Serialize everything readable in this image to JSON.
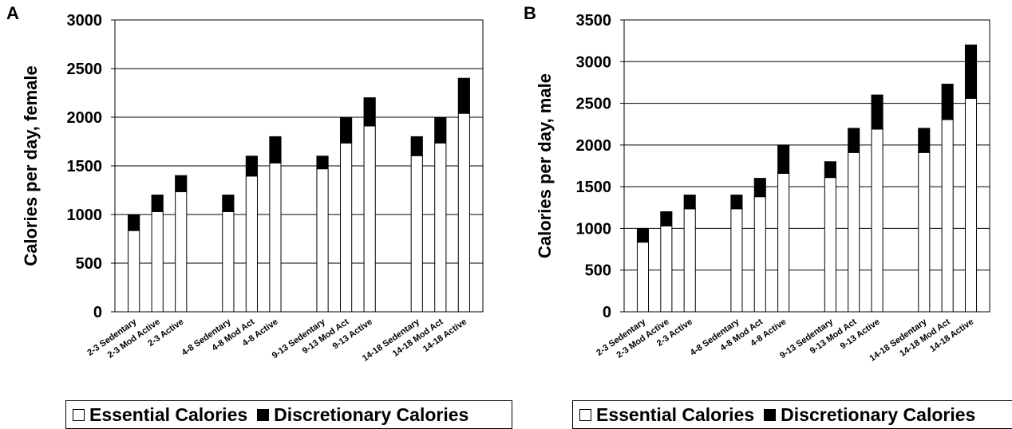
{
  "chart_data": [
    {
      "type": "bar",
      "stacked": true,
      "panel_label": "A",
      "ylabel": "Calories per day, female",
      "ylim": [
        0,
        3000
      ],
      "yticks": [
        0,
        500,
        1000,
        1500,
        2000,
        2500,
        3000
      ],
      "grid": true,
      "categories": [
        "2-3 Sedentary",
        "2-3 Mod Active",
        "2-3 Active",
        "4-8 Sedentary",
        "4-8 Mod Act",
        "4-8 Active",
        "9-13 Sedentary",
        "9-13 Mod Act",
        "9-13 Active",
        "14-18 Sedentary",
        "14-18 Mod Act",
        "14-18 Active"
      ],
      "groups": [
        [
          "2-3 Sedentary",
          "2-3 Mod Active",
          "2-3 Active"
        ],
        [
          "4-8 Sedentary",
          "4-8 Mod Act",
          "4-8 Active"
        ],
        [
          "9-13 Sedentary",
          "9-13 Mod Act",
          "9-13 Active"
        ],
        [
          "14-18 Sedentary",
          "14-18 Mod Act",
          "14-18 Active"
        ]
      ],
      "series": [
        {
          "name": "Essential Calories",
          "color": "#ffffff",
          "values": [
            835,
            1030,
            1235,
            1030,
            1395,
            1530,
            1470,
            1735,
            1910,
            1605,
            1735,
            2040
          ]
        },
        {
          "name": "Discretionary Calories",
          "color": "#000000",
          "values": [
            165,
            170,
            165,
            170,
            205,
            270,
            130,
            265,
            290,
            195,
            265,
            360
          ]
        }
      ],
      "legend": "bottom"
    },
    {
      "type": "bar",
      "stacked": true,
      "panel_label": "B",
      "ylabel": "Calories per day, male",
      "ylim": [
        0,
        3500
      ],
      "yticks": [
        0,
        500,
        1000,
        1500,
        2000,
        2500,
        3000,
        3500
      ],
      "grid": true,
      "categories": [
        "2-3 Sedentary",
        "2-3 Mod Active",
        "2-3 Active",
        "4-8 Sedentary",
        "4-8 Mod Act",
        "4-8 Active",
        "9-13 Sedentary",
        "9-13 Mod Act",
        "9-13 Active",
        "14-18 Sedentary",
        "14-18 Mod Act",
        "14-18 Active"
      ],
      "groups": [
        [
          "2-3 Sedentary",
          "2-3 Mod Active",
          "2-3 Active"
        ],
        [
          "4-8 Sedentary",
          "4-8 Mod Act",
          "4-8 Active"
        ],
        [
          "9-13 Sedentary",
          "9-13 Mod Act",
          "9-13 Active"
        ],
        [
          "14-18 Sedentary",
          "14-18 Mod Act",
          "14-18 Active"
        ]
      ],
      "series": [
        {
          "name": "Essential Calories",
          "color": "#ffffff",
          "values": [
            835,
            1030,
            1235,
            1235,
            1380,
            1660,
            1610,
            1910,
            2190,
            1910,
            2305,
            2560
          ]
        },
        {
          "name": "Discretionary Calories",
          "color": "#000000",
          "values": [
            165,
            170,
            165,
            165,
            220,
            340,
            190,
            290,
            410,
            290,
            425,
            640
          ]
        }
      ],
      "legend": "bottom"
    }
  ]
}
